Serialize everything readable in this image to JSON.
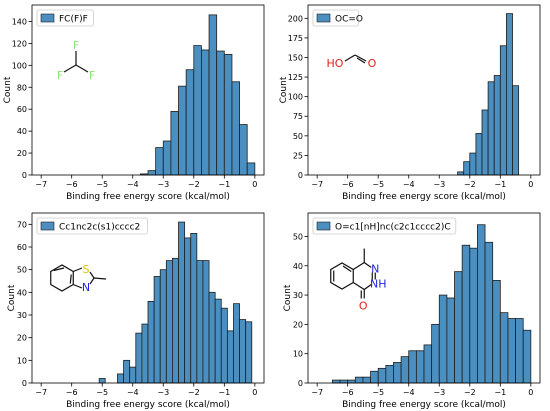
{
  "colors": {
    "bar_fill": "#4a8fc0",
    "bar_edge": "#1f1f1f",
    "fluorine": "#8fe07a",
    "oxygen": "#e02020",
    "nitrogen": "#2424dd",
    "sulfur": "#d8c400"
  },
  "chart_data": [
    {
      "type": "bar",
      "legend": "FC(F)F",
      "legend_position": "top-left",
      "xlabel": "Binding free energy score (kcal/mol)",
      "ylabel": "Count",
      "xlim": [
        -7.3,
        0.3
      ],
      "ylim": [
        0,
        155
      ],
      "xticks": [
        -7,
        -6,
        -5,
        -4,
        -3,
        -2,
        -1,
        0
      ],
      "xtick_labels": [
        "−7",
        "−6",
        "−5",
        "−4",
        "−3",
        "−2",
        "−1",
        "0"
      ],
      "yticks": [
        0,
        20,
        40,
        60,
        80,
        100,
        120,
        140
      ],
      "ytick_labels": [
        "0",
        "20",
        "40",
        "60",
        "80",
        "100",
        "120",
        "140"
      ],
      "bin_edges": [
        -3.75,
        -3.5,
        -3.25,
        -3.0,
        -2.75,
        -2.5,
        -2.25,
        -2.0,
        -1.75,
        -1.5,
        -1.25,
        -1.0,
        -0.75,
        -0.5,
        -0.25,
        0.0
      ],
      "values": [
        1,
        4,
        25,
        31,
        58,
        81,
        96,
        118,
        114,
        146,
        113,
        110,
        85,
        46,
        11
      ],
      "molecule": {
        "smiles": "FC(F)F",
        "atoms": [
          {
            "label": "F",
            "color": "fluorine"
          },
          {
            "label": "F",
            "color": "fluorine"
          },
          {
            "label": "F",
            "color": "fluorine"
          }
        ]
      }
    },
    {
      "type": "bar",
      "legend": "OC=O",
      "legend_position": "top-left",
      "xlabel": "Binding free energy score (kcal/mol)",
      "ylabel": "Count",
      "xlim": [
        -7.3,
        0.3
      ],
      "ylim": [
        0,
        217
      ],
      "xticks": [
        -7,
        -6,
        -5,
        -4,
        -3,
        -2,
        -1,
        0
      ],
      "xtick_labels": [
        "−7",
        "−6",
        "−5",
        "−4",
        "−3",
        "−2",
        "−1",
        "0"
      ],
      "yticks": [
        0,
        25,
        50,
        75,
        100,
        125,
        150,
        175,
        200
      ],
      "ytick_labels": [
        "0",
        "25",
        "50",
        "75",
        "100",
        "125",
        "150",
        "175",
        "200"
      ],
      "bin_edges": [
        -2.4,
        -2.2,
        -2.0,
        -1.8,
        -1.6,
        -1.4,
        -1.2,
        -1.0,
        -0.8,
        -0.6,
        -0.4
      ],
      "values": [
        4,
        17,
        28,
        53,
        83,
        119,
        127,
        165,
        206,
        114
      ],
      "molecule": {
        "smiles": "OC=O",
        "atoms": [
          {
            "label": "HO",
            "color": "oxygen"
          },
          {
            "label": "O",
            "color": "oxygen"
          }
        ]
      }
    },
    {
      "type": "bar",
      "legend": "Cc1nc2c(s1)cccc2",
      "legend_position": "top-left",
      "xlabel": "Binding free energy score (kcal/mol)",
      "ylabel": "Count",
      "xlim": [
        -7.3,
        0.3
      ],
      "ylim": [
        0,
        75
      ],
      "xticks": [
        -7,
        -6,
        -5,
        -4,
        -3,
        -2,
        -1,
        0
      ],
      "xtick_labels": [
        "−7",
        "−6",
        "−5",
        "−4",
        "−3",
        "−2",
        "−1",
        "0"
      ],
      "yticks": [
        0,
        10,
        20,
        30,
        40,
        50,
        60,
        70
      ],
      "ytick_labels": [
        "0",
        "10",
        "20",
        "30",
        "40",
        "50",
        "60",
        "70"
      ],
      "bin_edges": [
        -5.1,
        -4.9,
        -4.7,
        -4.5,
        -4.3,
        -4.1,
        -3.9,
        -3.7,
        -3.5,
        -3.3,
        -3.1,
        -2.9,
        -2.7,
        -2.5,
        -2.3,
        -2.1,
        -1.9,
        -1.7,
        -1.5,
        -1.3,
        -1.1,
        -0.9,
        -0.7,
        -0.5,
        -0.3,
        -0.1
      ],
      "values": [
        2,
        0,
        0,
        4,
        10,
        7,
        22,
        26,
        36,
        47,
        50,
        54,
        55,
        71,
        64,
        66,
        54,
        54,
        40,
        37,
        33,
        23,
        35,
        28,
        27
      ],
      "molecule": {
        "smiles": "Cc1nc2c(s1)cccc2",
        "atoms": [
          {
            "label": "S",
            "color": "sulfur"
          },
          {
            "label": "N",
            "color": "nitrogen"
          }
        ]
      }
    },
    {
      "type": "bar",
      "legend": "O=c1[nH]nc(c2c1cccc2)C",
      "legend_position": "top-left",
      "xlabel": "Binding free energy score (kcal/mol)",
      "ylabel": "Count",
      "xlim": [
        -7.3,
        0.3
      ],
      "ylim": [
        0,
        58
      ],
      "xticks": [
        -7,
        -6,
        -5,
        -4,
        -3,
        -2,
        -1,
        0
      ],
      "xtick_labels": [
        "−7",
        "−6",
        "−5",
        "−4",
        "−3",
        "−2",
        "−1",
        "0"
      ],
      "yticks": [
        0,
        10,
        20,
        30,
        40,
        50
      ],
      "ytick_labels": [
        "0",
        "10",
        "20",
        "30",
        "40",
        "50"
      ],
      "bin_edges": [
        -6.5,
        -6.25,
        -6.0,
        -5.75,
        -5.5,
        -5.25,
        -5.0,
        -4.75,
        -4.5,
        -4.25,
        -4.0,
        -3.75,
        -3.5,
        -3.25,
        -3.0,
        -2.75,
        -2.5,
        -2.25,
        -2.0,
        -1.75,
        -1.5,
        -1.25,
        -1.0,
        -0.75,
        -0.5,
        -0.25,
        0.0
      ],
      "values": [
        1,
        1,
        1,
        2,
        2,
        4,
        5,
        6,
        7,
        9,
        11,
        11,
        13,
        20,
        30,
        29,
        38,
        47,
        46,
        54,
        48,
        35,
        24,
        22,
        22,
        18
      ],
      "molecule": {
        "smiles": "O=c1[nH]nc(c2c1cccc2)C",
        "atoms": [
          {
            "label": "N",
            "color": "nitrogen"
          },
          {
            "label": "NH",
            "color": "nitrogen"
          },
          {
            "label": "O",
            "color": "oxygen"
          }
        ]
      }
    }
  ]
}
